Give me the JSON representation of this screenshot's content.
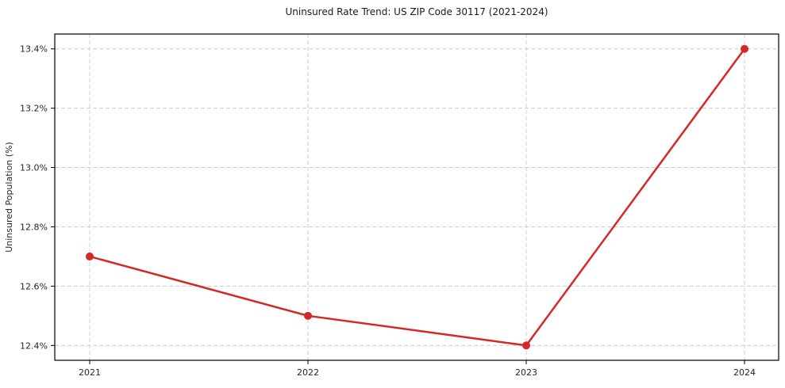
{
  "chart_data": {
    "type": "line",
    "title": "Uninsured Rate Trend: US ZIP Code 30117 (2021-2024)",
    "xlabel": "",
    "ylabel": "Uninsured Population (%)",
    "categories": [
      "2021",
      "2022",
      "2023",
      "2024"
    ],
    "series": [
      {
        "name": "Uninsured rate",
        "values": [
          12.7,
          12.5,
          12.4,
          13.4
        ],
        "color": "#d62728",
        "marker": "circle",
        "line_width": 2.5,
        "marker_radius": 5
      }
    ],
    "ytick_values": [
      12.4,
      12.6,
      12.8,
      13.0,
      13.2,
      13.4
    ],
    "ytick_labels": [
      "12.4%",
      "12.6%",
      "12.8%",
      "13.0%",
      "13.2%",
      "13.4%"
    ],
    "ylim": [
      12.35,
      13.45
    ],
    "grid": "both",
    "grid_style": "dashed",
    "grid_color": "#cccccc",
    "legend_position": "none",
    "background_color": "#ffffff",
    "axis_color": "#000000"
  }
}
